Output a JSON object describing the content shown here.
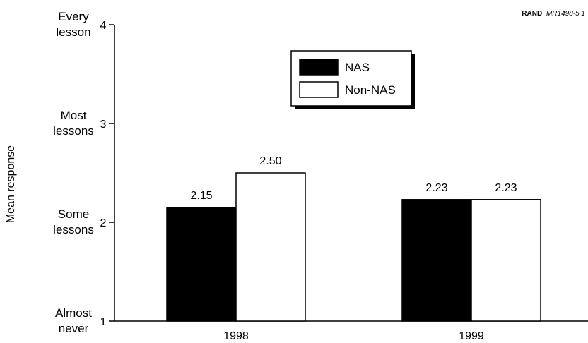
{
  "source_tag": {
    "bold": "RAND",
    "italic": "MR1498-5.1"
  },
  "chart_data": {
    "type": "bar",
    "title": "",
    "xlabel": "",
    "ylabel": "Mean response",
    "ylim": [
      1,
      4
    ],
    "yticks": [
      {
        "value": 1,
        "label": "1",
        "desc": [
          "Almost",
          "never"
        ]
      },
      {
        "value": 2,
        "label": "2",
        "desc": [
          "Some",
          "lessons"
        ]
      },
      {
        "value": 3,
        "label": "3",
        "desc": [
          "Most",
          "lessons"
        ]
      },
      {
        "value": 4,
        "label": "4",
        "desc": [
          "Every",
          "lesson"
        ]
      }
    ],
    "categories": [
      "1998",
      "1999"
    ],
    "series": [
      {
        "name": "NAS",
        "color": "#000000",
        "values": [
          2.15,
          2.23
        ],
        "labels": [
          "2.15",
          "2.23"
        ]
      },
      {
        "name": "Non-NAS",
        "color": "#ffffff",
        "values": [
          2.5,
          2.23
        ],
        "labels": [
          "2.50",
          "2.23"
        ]
      }
    ],
    "legend": "top-center",
    "grid": false
  }
}
